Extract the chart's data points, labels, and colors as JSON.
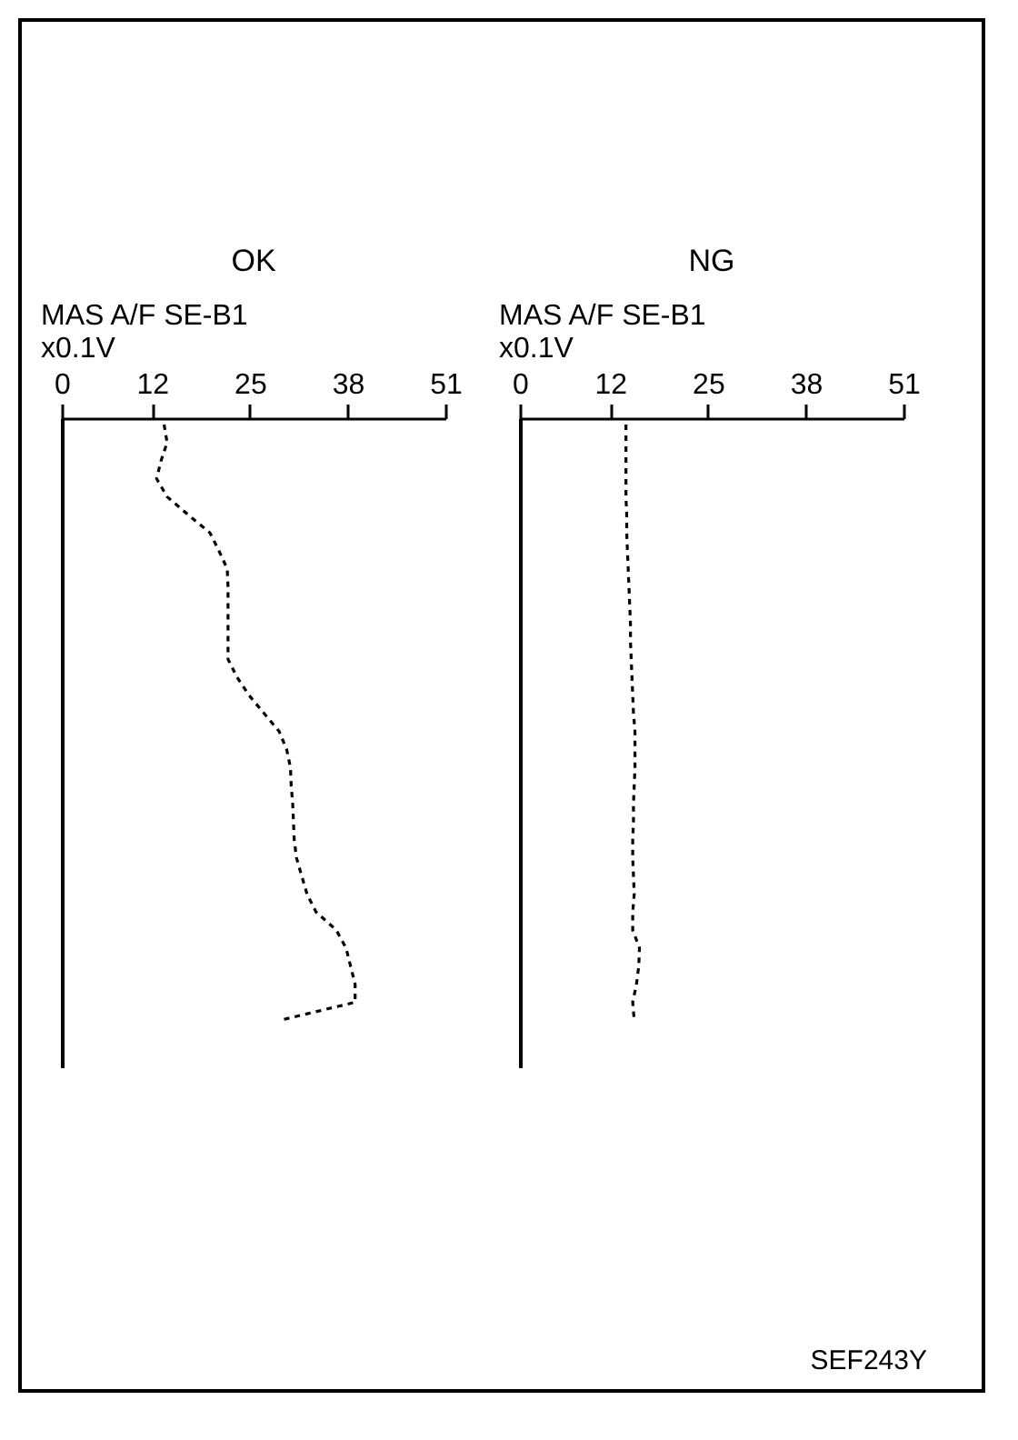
{
  "chart_data": [
    {
      "type": "line",
      "title": "OK",
      "xlabel": "MAS A/F SE-B1\nx0.1V",
      "orientation": "horizontal",
      "line_style": "dashed",
      "tick_labels": "x",
      "grid": false,
      "xlim": [
        0,
        51
      ],
      "xticks": [
        0,
        12,
        25,
        38,
        51
      ],
      "categories": [
        null,
        null,
        null,
        null,
        null,
        null,
        null,
        null,
        null,
        null,
        null,
        null,
        null,
        null,
        null,
        null,
        null,
        null,
        null,
        null,
        null,
        null,
        null,
        null,
        null,
        null,
        null,
        null,
        null,
        null,
        null,
        null,
        null,
        null
      ],
      "series": [
        {
          "color": "#000000",
          "values": [
            13.6,
            14.0,
            13.2,
            12.6,
            14.0,
            16.8,
            19.7,
            20.9,
            22.0,
            22.1,
            22.1,
            22.1,
            22.1,
            22.1,
            23.3,
            24.9,
            26.9,
            28.9,
            29.9,
            30.4,
            30.5,
            30.7,
            30.8,
            30.9,
            31.2,
            31.9,
            32.6,
            33.8,
            36.5,
            37.8,
            38.4,
            39.0,
            39.0,
            29.0
          ]
        }
      ]
    },
    {
      "type": "line",
      "title": "NG",
      "xlabel": "MAS A/F SE-B1\nx0.1V",
      "orientation": "horizontal",
      "line_style": "dashed",
      "tick_labels": "x",
      "grid": false,
      "xlim": [
        0,
        51
      ],
      "xticks": [
        0,
        12,
        25,
        38,
        51
      ],
      "categories": [
        null,
        null,
        null,
        null,
        null,
        null,
        null,
        null,
        null,
        null,
        null,
        null,
        null,
        null,
        null,
        null,
        null,
        null,
        null,
        null,
        null,
        null,
        null,
        null,
        null,
        null,
        null,
        null,
        null,
        null,
        null,
        null,
        null,
        null
      ],
      "series": [
        {
          "color": "#000000",
          "values": [
            14.1,
            14.1,
            14.1,
            14.1,
            14.1,
            14.2,
            14.2,
            14.3,
            14.4,
            14.5,
            14.6,
            14.7,
            14.7,
            14.8,
            14.9,
            15.0,
            15.1,
            15.3,
            15.3,
            15.3,
            15.2,
            15.1,
            15.1,
            15.0,
            15.0,
            15.1,
            15.2,
            15.0,
            15.0,
            15.9,
            15.8,
            15.5,
            15.0,
            15.2
          ]
        }
      ],
      "annotations": [
        "SEF243Y"
      ]
    }
  ]
}
